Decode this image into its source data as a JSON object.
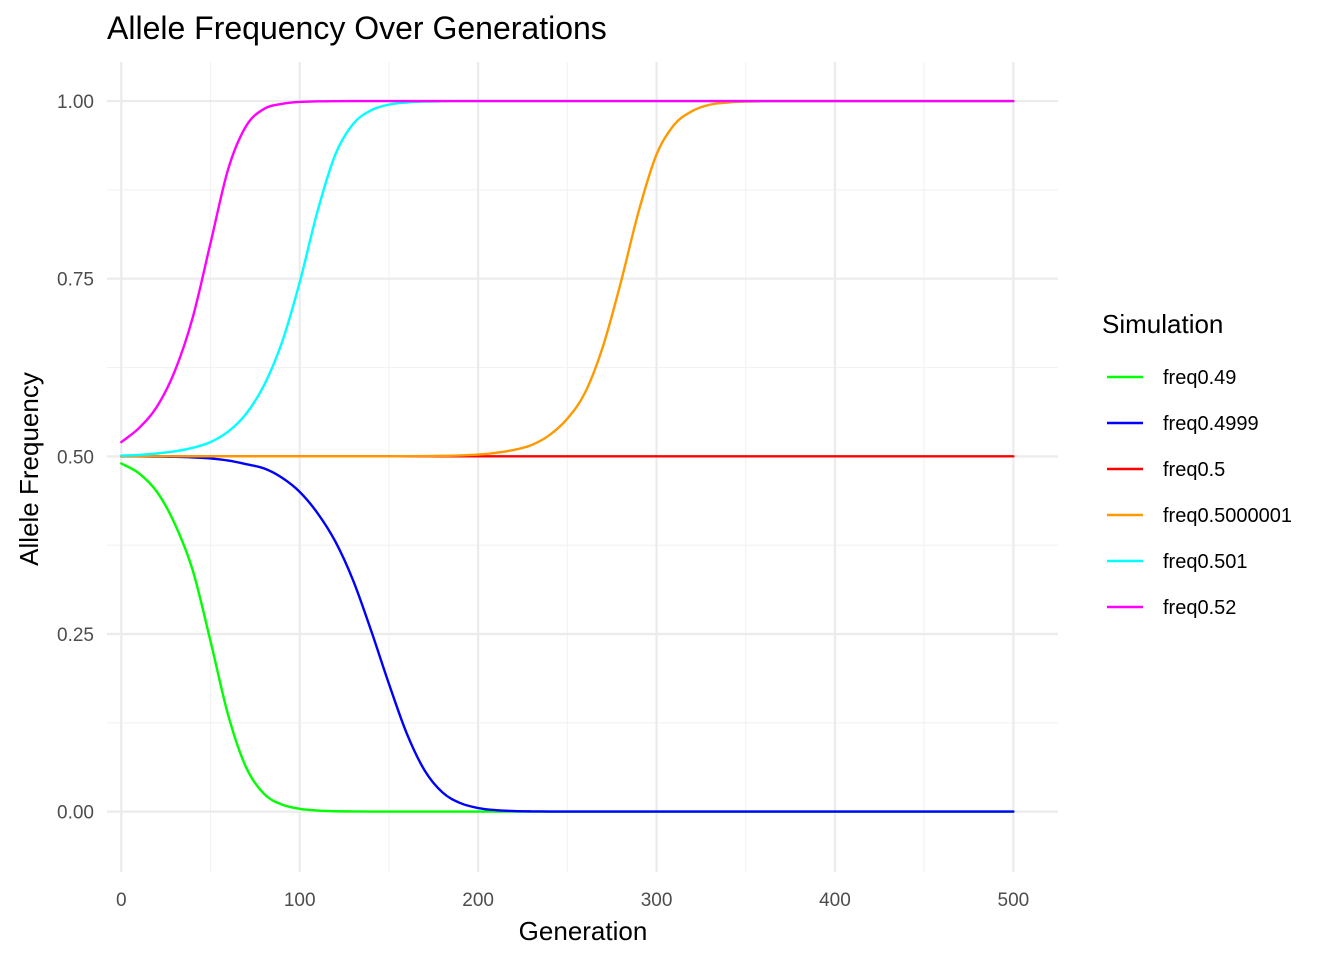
{
  "chart_data": {
    "type": "line",
    "title": "Allele Frequency Over Generations",
    "xlabel": "Generation",
    "ylabel": "Allele Frequency",
    "xlim": [
      -8,
      525
    ],
    "ylim": [
      -0.085,
      1.055
    ],
    "x_ticks": [
      0,
      100,
      200,
      300,
      400,
      500
    ],
    "x_tick_labels": [
      "0",
      "100",
      "200",
      "300",
      "400",
      "500"
    ],
    "y_ticks": [
      0,
      0.25,
      0.5,
      0.75,
      1.0
    ],
    "y_tick_labels": [
      "0.00",
      "0.25",
      "0.50",
      "0.75",
      "1.00"
    ],
    "grid": true,
    "legend": {
      "title": "Simulation",
      "position": "right"
    },
    "x": [
      0,
      10,
      20,
      30,
      40,
      50,
      60,
      70,
      80,
      90,
      100,
      110,
      120,
      130,
      140,
      150,
      160,
      170,
      180,
      190,
      200,
      210,
      220,
      230,
      240,
      250,
      260,
      270,
      280,
      290,
      300,
      310,
      320,
      330,
      340,
      350,
      360,
      370,
      380,
      390,
      400,
      410,
      420,
      430,
      440,
      450,
      460,
      470,
      480,
      490,
      500
    ],
    "series": [
      {
        "name": "freq0.49",
        "color": "#00ff00",
        "values": [
          0.49,
          0.476,
          0.45,
          0.405,
          0.34,
          0.24,
          0.135,
          0.062,
          0.025,
          0.01,
          0.004,
          0.0015,
          0.0005,
          0.0002,
          0.0001,
          0,
          0,
          0,
          0,
          0,
          0,
          0,
          0,
          0,
          0,
          0,
          0,
          0,
          0,
          0,
          0,
          0,
          0,
          0,
          0,
          0,
          0,
          0,
          0,
          0,
          0,
          0,
          0,
          0,
          0,
          0,
          0,
          0,
          0,
          0,
          0
        ]
      },
      {
        "name": "freq0.4999",
        "color": "#0000ff",
        "values": [
          0.4999,
          0.4998,
          0.4996,
          0.4993,
          0.4985,
          0.497,
          0.494,
          0.489,
          0.483,
          0.47,
          0.45,
          0.42,
          0.38,
          0.325,
          0.255,
          0.18,
          0.11,
          0.058,
          0.027,
          0.012,
          0.005,
          0.002,
          0.0008,
          0.0003,
          0.0001,
          0,
          0,
          0,
          0,
          0,
          0,
          0,
          0,
          0,
          0,
          0,
          0,
          0,
          0,
          0,
          0,
          0,
          0,
          0,
          0,
          0,
          0,
          0,
          0,
          0,
          0
        ]
      },
      {
        "name": "freq0.5",
        "color": "#ff0000",
        "values": [
          0.5,
          0.5,
          0.5,
          0.5,
          0.5,
          0.5,
          0.5,
          0.5,
          0.5,
          0.5,
          0.5,
          0.5,
          0.5,
          0.5,
          0.5,
          0.5,
          0.5,
          0.5,
          0.5,
          0.5,
          0.5,
          0.5,
          0.5,
          0.5,
          0.5,
          0.5,
          0.5,
          0.5,
          0.5,
          0.5,
          0.5,
          0.5,
          0.5,
          0.5,
          0.5,
          0.5,
          0.5,
          0.5,
          0.5,
          0.5,
          0.5,
          0.5,
          0.5,
          0.5,
          0.5,
          0.5,
          0.5,
          0.5,
          0.5,
          0.5,
          0.5
        ]
      },
      {
        "name": "freq0.5000001",
        "color": "#ff9900",
        "values": [
          0.5,
          0.5,
          0.5,
          0.5,
          0.5,
          0.5,
          0.5,
          0.5,
          0.5,
          0.5,
          0.5,
          0.5,
          0.5,
          0.5,
          0.5001,
          0.5001,
          0.5002,
          0.5004,
          0.5007,
          0.5013,
          0.5025,
          0.505,
          0.509,
          0.516,
          0.53,
          0.553,
          0.59,
          0.655,
          0.745,
          0.845,
          0.925,
          0.967,
          0.986,
          0.995,
          0.998,
          0.9993,
          0.9998,
          1.0,
          1.0,
          1.0,
          1.0,
          1.0,
          1.0,
          1.0,
          1.0,
          1.0,
          1.0,
          1.0,
          1.0,
          1.0,
          1.0
        ]
      },
      {
        "name": "freq0.501",
        "color": "#00ffff",
        "values": [
          0.501,
          0.502,
          0.504,
          0.507,
          0.512,
          0.52,
          0.535,
          0.56,
          0.6,
          0.66,
          0.745,
          0.845,
          0.925,
          0.968,
          0.987,
          0.995,
          0.998,
          0.9993,
          0.9998,
          1.0,
          1.0,
          1.0,
          1.0,
          1.0,
          1.0,
          1.0,
          1.0,
          1.0,
          1.0,
          1.0,
          1.0,
          1.0,
          1.0,
          1.0,
          1.0,
          1.0,
          1.0,
          1.0,
          1.0,
          1.0,
          1.0,
          1.0,
          1.0,
          1.0,
          1.0,
          1.0,
          1.0,
          1.0,
          1.0,
          1.0,
          1.0
        ]
      },
      {
        "name": "freq0.52",
        "color": "#ff00ff",
        "values": [
          0.52,
          0.54,
          0.57,
          0.62,
          0.695,
          0.8,
          0.905,
          0.965,
          0.989,
          0.996,
          0.9988,
          0.9996,
          0.9999,
          1.0,
          1.0,
          1.0,
          1.0,
          1.0,
          1.0,
          1.0,
          1.0,
          1.0,
          1.0,
          1.0,
          1.0,
          1.0,
          1.0,
          1.0,
          1.0,
          1.0,
          1.0,
          1.0,
          1.0,
          1.0,
          1.0,
          1.0,
          1.0,
          1.0,
          1.0,
          1.0,
          1.0,
          1.0,
          1.0,
          1.0,
          1.0,
          1.0,
          1.0,
          1.0,
          1.0,
          1.0,
          1.0
        ]
      }
    ]
  }
}
